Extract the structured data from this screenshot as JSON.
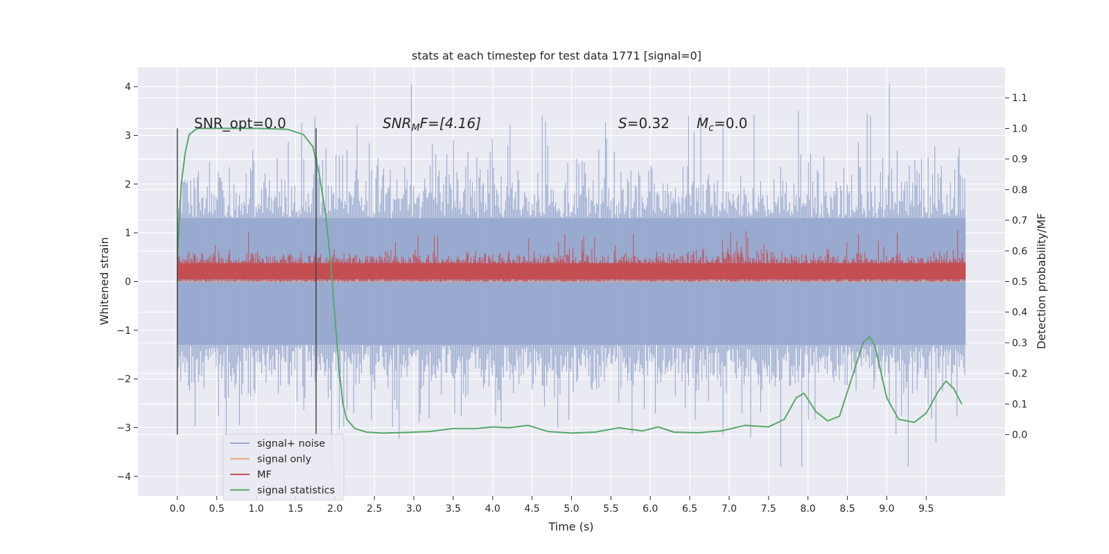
{
  "chart_data": {
    "type": "line",
    "title": "stats at each timestep for test data 1771 [signal=0]",
    "xlabel": "Time (s)",
    "ylabel": "Whitened strain",
    "ylabel_right": "Detection probability/MF",
    "xlim": [
      -0.5,
      10.5
    ],
    "ylim": [
      -4.4,
      4.4
    ],
    "ylim_right": [
      -0.2,
      1.2
    ],
    "x_ticks": [
      "0.0",
      "0.5",
      "1.0",
      "1.5",
      "2.0",
      "2.5",
      "3.0",
      "3.5",
      "4.0",
      "4.5",
      "5.0",
      "5.5",
      "6.0",
      "6.5",
      "7.0",
      "7.5",
      "8.0",
      "8.5",
      "9.0",
      "9.5"
    ],
    "y_ticks": [
      "4",
      "3",
      "2",
      "1",
      "0",
      "−1",
      "−2",
      "−3",
      "−4"
    ],
    "y_ticks_right": [
      "1.1",
      "1.0",
      "0.9",
      "0.8",
      "0.7",
      "0.6",
      "0.5",
      "0.4",
      "0.3",
      "0.2",
      "0.1",
      "0.0"
    ],
    "grid": true,
    "legend_placement": "lower-left",
    "annotations": {
      "snr_opt": "SNR_opt=0.0",
      "snr_mf_main": "SNR",
      "snr_mf_sub": "M",
      "snr_mf_rest": "F=[4.16]",
      "s_main": "S",
      "s_rest": "=0.32",
      "mc_main": "M",
      "mc_sub": "c",
      "mc_rest": "=0.0"
    },
    "vlines_x": [
      0.0,
      1.76
    ],
    "series": [
      {
        "name": "signal+ noise",
        "color": "#98a9cf",
        "style": "noise",
        "axis": "left",
        "envelope_x": [
          0,
          10
        ],
        "typical_range": [
          -1.3,
          1.3
        ],
        "peak_range": [
          -4.0,
          4.05
        ]
      },
      {
        "name": "signal only",
        "color": "#e8a588",
        "style": "flat",
        "axis": "left",
        "values": [
          [
            0,
            0
          ],
          [
            10,
            0
          ]
        ]
      },
      {
        "name": "MF",
        "color": "#c44e52",
        "style": "mf",
        "axis": "left",
        "envelope_x": [
          0,
          10
        ],
        "typical_range": [
          0.05,
          0.5
        ],
        "peak_range": [
          0,
          1.05
        ]
      },
      {
        "name": "signal statistics",
        "color": "#55a868",
        "style": "line",
        "axis": "right",
        "x": [
          0.0,
          0.05,
          0.1,
          0.15,
          0.25,
          0.5,
          1.0,
          1.4,
          1.6,
          1.72,
          1.8,
          1.88,
          1.95,
          2.0,
          2.05,
          2.1,
          2.15,
          2.25,
          2.4,
          2.6,
          2.9,
          3.2,
          3.5,
          3.8,
          4.0,
          4.2,
          4.45,
          4.7,
          5.0,
          5.3,
          5.6,
          5.9,
          6.1,
          6.3,
          6.6,
          6.9,
          7.2,
          7.5,
          7.7,
          7.85,
          7.95,
          8.1,
          8.25,
          8.4,
          8.55,
          8.7,
          8.78,
          8.85,
          9.0,
          9.15,
          9.35,
          9.5,
          9.65,
          9.75,
          9.85,
          9.95
        ],
        "values": [
          0.58,
          0.82,
          0.92,
          0.98,
          1.0,
          1.0,
          1.0,
          0.997,
          0.98,
          0.94,
          0.85,
          0.72,
          0.55,
          0.38,
          0.22,
          0.1,
          0.05,
          0.02,
          0.008,
          0.005,
          0.007,
          0.01,
          0.02,
          0.02,
          0.025,
          0.022,
          0.03,
          0.01,
          0.005,
          0.008,
          0.022,
          0.012,
          0.025,
          0.008,
          0.006,
          0.012,
          0.03,
          0.025,
          0.05,
          0.12,
          0.135,
          0.075,
          0.045,
          0.06,
          0.18,
          0.3,
          0.32,
          0.29,
          0.12,
          0.05,
          0.04,
          0.07,
          0.14,
          0.175,
          0.15,
          0.1
        ]
      }
    ]
  }
}
